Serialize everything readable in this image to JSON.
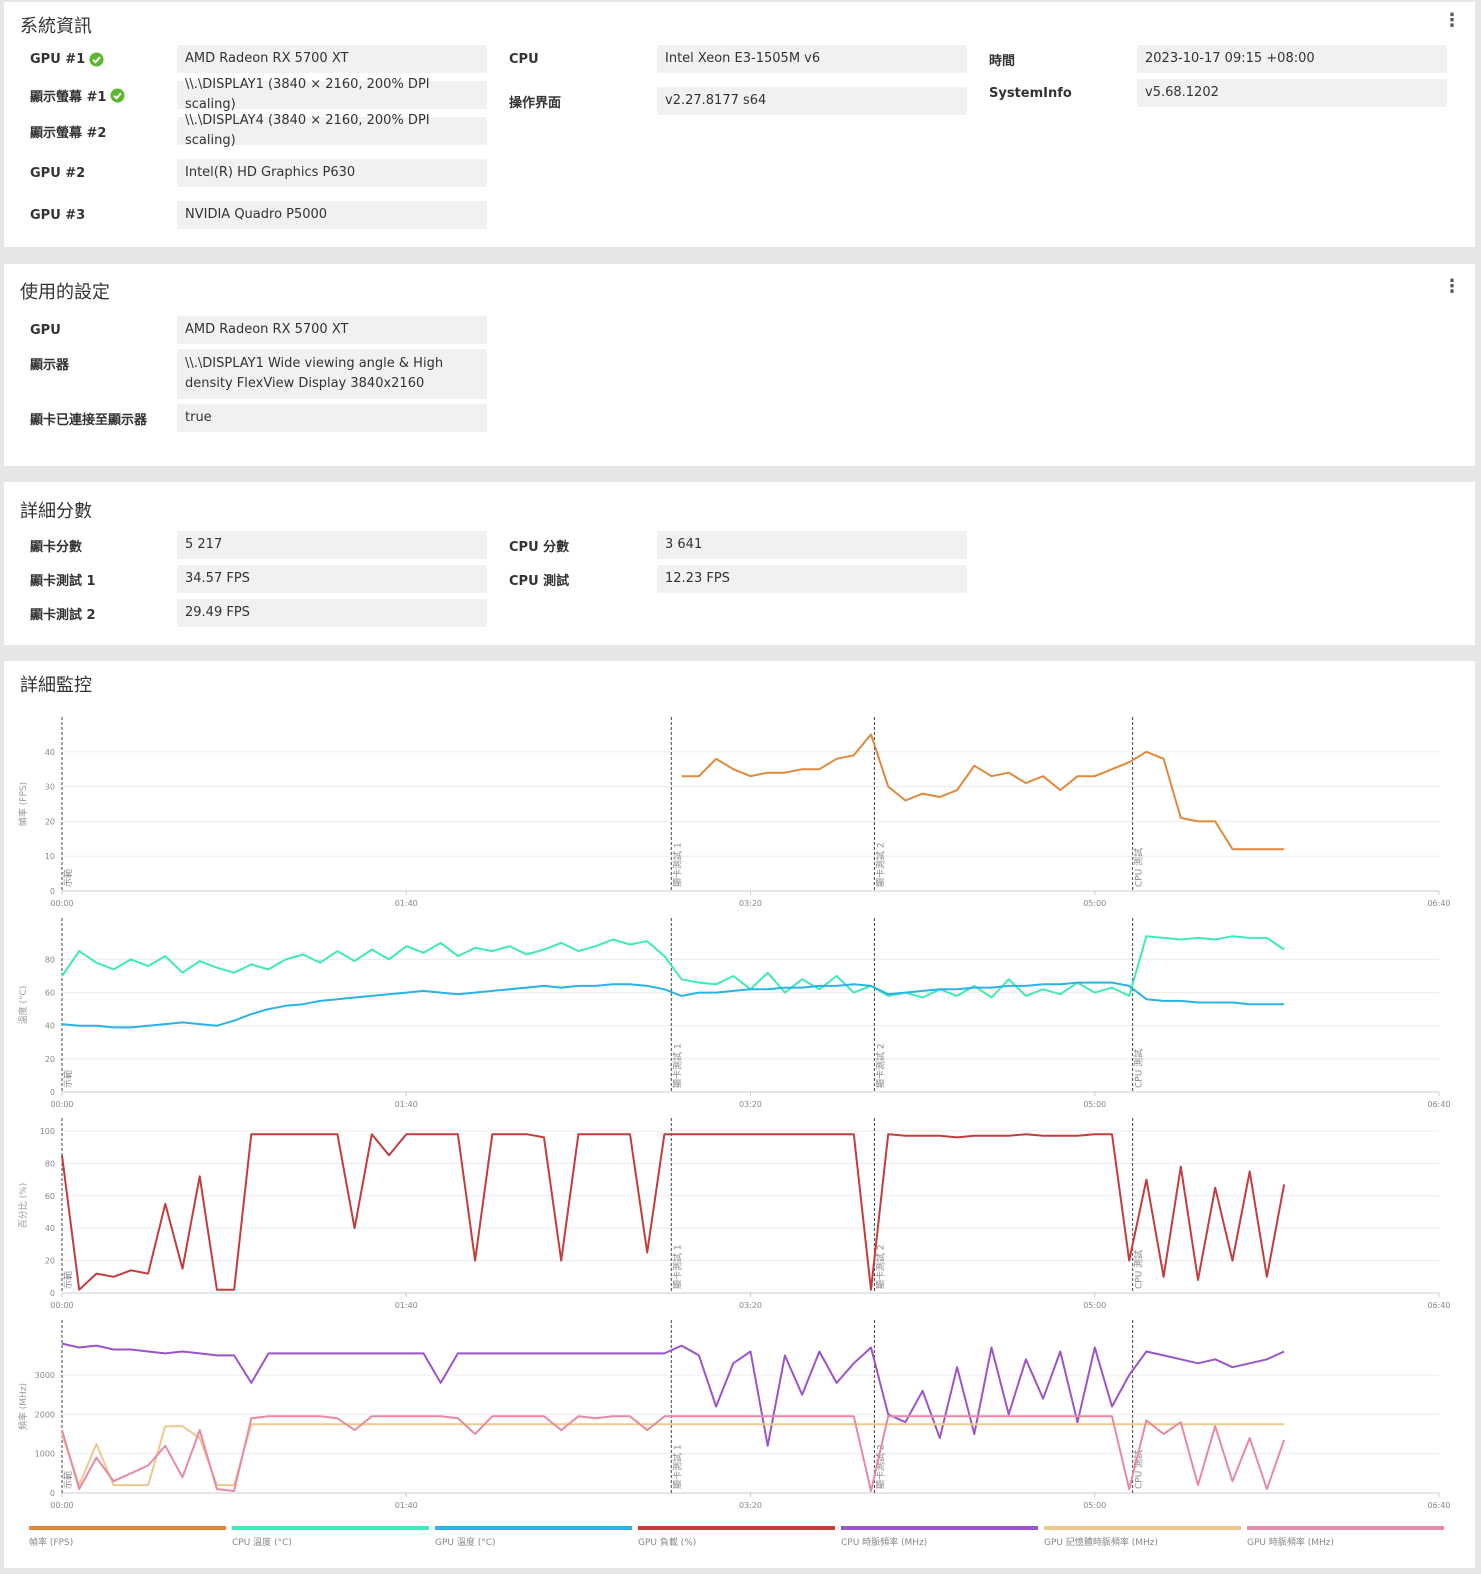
{
  "system_info": {
    "title": "系統資訊",
    "fields": [
      {
        "label": "GPU #1",
        "value": "AMD Radeon RX 5700 XT"
      },
      {
        "label": "顯示螢幕 #1",
        "value": "\\\\.\\DISPLAY1 (3840 × 2160, 200% DPI scaling)"
      },
      {
        "label": "顯示螢幕 #2",
        "value": "\\\\.\\DISPLAY4 (3840 × 2160, 200% DPI scaling)"
      },
      {
        "label": "GPU #2",
        "value": "Intel(R) HD Graphics P630"
      },
      {
        "label": "GPU #3",
        "value": "NVIDIA Quadro P5000"
      },
      {
        "label": "CPU",
        "value": "Intel Xeon E3-1505M v6"
      },
      {
        "label": "操作界面",
        "value": "v2.27.8177 s64"
      },
      {
        "label": "時間",
        "value": "2023-10-17 09:15 +08:00"
      },
      {
        "label": "SystemInfo",
        "value": "v5.68.1202"
      }
    ]
  },
  "settings": {
    "title": "使用的設定",
    "fields": [
      {
        "label": "GPU",
        "value": "AMD Radeon RX 5700 XT"
      },
      {
        "label": "顯示器",
        "value": "\\\\.\\DISPLAY1 Wide viewing angle & High density FlexView Display 3840x2160"
      },
      {
        "label": "顯卡已連接至顯示器",
        "value": "true"
      }
    ]
  },
  "scores": {
    "title": "詳細分數",
    "fields": [
      {
        "label": "顯卡分數",
        "value": "5 217"
      },
      {
        "label": "顯卡測試 1",
        "value": "34.57 FPS"
      },
      {
        "label": "顯卡測試 2",
        "value": "29.49 FPS"
      },
      {
        "label": "CPU 分數",
        "value": "3 641"
      },
      {
        "label": "CPU 測試",
        "value": "12.23 FPS"
      }
    ]
  },
  "monitoring": {
    "title": "詳細監控",
    "events": [
      {
        "time": 0,
        "label": "示範"
      },
      {
        "time": 177,
        "label": "顯卡測試 1"
      },
      {
        "time": 236,
        "label": "顯卡測試 2"
      },
      {
        "time": 311,
        "label": "CPU 測試"
      }
    ]
  },
  "chart_data": [
    {
      "type": "line",
      "y_label": "幀率 (FPS)",
      "grid": true,
      "x": [
        0,
        5,
        10,
        15,
        20,
        25,
        30,
        35,
        40,
        45,
        50,
        55,
        60,
        65,
        70,
        75,
        80,
        85,
        90,
        95,
        100,
        105,
        110,
        115,
        120,
        125,
        130,
        135,
        140,
        145,
        150,
        155,
        160,
        165,
        170,
        175,
        180,
        185,
        190,
        195,
        200,
        205,
        210,
        215,
        220,
        225,
        230,
        235,
        240,
        245,
        250,
        255,
        260,
        265,
        270,
        275,
        280,
        285,
        290,
        295,
        300,
        305,
        310,
        315,
        320,
        325,
        330,
        335,
        340,
        345,
        350,
        355
      ],
      "xlim": [
        0,
        400
      ],
      "xticks": [
        {
          "value": 0,
          "label": "00:00"
        },
        {
          "value": 100,
          "label": "01:40"
        },
        {
          "value": 200,
          "label": "03:20"
        },
        {
          "value": 300,
          "label": "05:00"
        },
        {
          "value": 400,
          "label": "06:40"
        }
      ],
      "ylim": [
        0,
        50
      ],
      "yticks": [
        0,
        10,
        20,
        30,
        40
      ],
      "series": [
        {
          "name": "幀率 (FPS)",
          "color": "#e0893a",
          "values": [
            null,
            null,
            null,
            null,
            null,
            null,
            null,
            null,
            null,
            null,
            null,
            null,
            null,
            null,
            null,
            null,
            null,
            null,
            null,
            null,
            null,
            null,
            null,
            null,
            null,
            null,
            null,
            null,
            null,
            null,
            null,
            null,
            null,
            null,
            null,
            null,
            33,
            33,
            38,
            35,
            33,
            34,
            34,
            35,
            35,
            38,
            39,
            45,
            30,
            26,
            28,
            27,
            29,
            36,
            33,
            34,
            31,
            33,
            29,
            33,
            33,
            35,
            37,
            40,
            38,
            21,
            20,
            20,
            12,
            12,
            12,
            12
          ]
        }
      ]
    },
    {
      "type": "line",
      "y_label": "溫度 (°C)",
      "grid": true,
      "x": [
        0,
        5,
        10,
        15,
        20,
        25,
        30,
        35,
        40,
        45,
        50,
        55,
        60,
        65,
        70,
        75,
        80,
        85,
        90,
        95,
        100,
        105,
        110,
        115,
        120,
        125,
        130,
        135,
        140,
        145,
        150,
        155,
        160,
        165,
        170,
        175,
        180,
        185,
        190,
        195,
        200,
        205,
        210,
        215,
        220,
        225,
        230,
        235,
        240,
        245,
        250,
        255,
        260,
        265,
        270,
        275,
        280,
        285,
        290,
        295,
        300,
        305,
        310,
        315,
        320,
        325,
        330,
        335,
        340,
        345,
        350,
        355
      ],
      "xlim": [
        0,
        400
      ],
      "xticks": [
        {
          "value": 0,
          "label": "00:00"
        },
        {
          "value": 100,
          "label": "01:40"
        },
        {
          "value": 200,
          "label": "03:20"
        },
        {
          "value": 300,
          "label": "05:00"
        },
        {
          "value": 400,
          "label": "06:40"
        }
      ],
      "ylim": [
        0,
        105
      ],
      "yticks": [
        0,
        20,
        40,
        60,
        80
      ],
      "series": [
        {
          "name": "CPU 溫度 (°C)",
          "color": "#3eeab9",
          "values": [
            70,
            85,
            78,
            74,
            80,
            76,
            82,
            72,
            79,
            75,
            72,
            77,
            74,
            80,
            83,
            78,
            85,
            79,
            86,
            80,
            88,
            84,
            90,
            82,
            87,
            85,
            88,
            83,
            86,
            90,
            85,
            88,
            92,
            89,
            91,
            82,
            68,
            66,
            65,
            70,
            62,
            72,
            60,
            68,
            62,
            70,
            60,
            64,
            58,
            60,
            57,
            62,
            58,
            64,
            57,
            68,
            58,
            62,
            59,
            66,
            60,
            63,
            58,
            94,
            93,
            92,
            93,
            92,
            94,
            93,
            93,
            86
          ]
        },
        {
          "name": "GPU 溫度 (°C)",
          "color": "#2bb3e3",
          "values": [
            41,
            40,
            40,
            39,
            39,
            40,
            41,
            42,
            41,
            40,
            43,
            47,
            50,
            52,
            53,
            55,
            56,
            57,
            58,
            59,
            60,
            61,
            60,
            59,
            60,
            61,
            62,
            63,
            64,
            63,
            64,
            64,
            65,
            65,
            64,
            62,
            58,
            60,
            60,
            61,
            62,
            62,
            63,
            63,
            64,
            64,
            65,
            64,
            59,
            60,
            61,
            62,
            62,
            63,
            63,
            64,
            64,
            65,
            65,
            66,
            66,
            66,
            64,
            56,
            55,
            55,
            54,
            54,
            54,
            53,
            53,
            53
          ]
        }
      ]
    },
    {
      "type": "line",
      "y_label": "百分比 (%)",
      "grid": true,
      "x": [
        0,
        5,
        10,
        15,
        20,
        25,
        30,
        35,
        40,
        45,
        50,
        55,
        60,
        65,
        70,
        75,
        80,
        85,
        90,
        95,
        100,
        105,
        110,
        115,
        120,
        125,
        130,
        135,
        140,
        145,
        150,
        155,
        160,
        165,
        170,
        175,
        180,
        185,
        190,
        195,
        200,
        205,
        210,
        215,
        220,
        225,
        230,
        235,
        240,
        245,
        250,
        255,
        260,
        265,
        270,
        275,
        280,
        285,
        290,
        295,
        300,
        305,
        310,
        315,
        320,
        325,
        330,
        335,
        340,
        345,
        350,
        355
      ],
      "xlim": [
        0,
        400
      ],
      "xticks": [
        {
          "value": 0,
          "label": "00:00"
        },
        {
          "value": 100,
          "label": "01:40"
        },
        {
          "value": 200,
          "label": "03:20"
        },
        {
          "value": 300,
          "label": "05:00"
        },
        {
          "value": 400,
          "label": "06:40"
        }
      ],
      "ylim": [
        0,
        108
      ],
      "yticks": [
        0,
        20,
        40,
        60,
        80,
        100
      ],
      "series": [
        {
          "name": "GPU 負載 (%)",
          "color": "#c43c3c",
          "values": [
            85,
            2,
            12,
            10,
            14,
            12,
            55,
            15,
            72,
            2,
            2,
            98,
            98,
            98,
            98,
            98,
            98,
            40,
            98,
            85,
            98,
            98,
            98,
            98,
            20,
            98,
            98,
            98,
            96,
            20,
            98,
            98,
            98,
            98,
            25,
            98,
            98,
            98,
            98,
            98,
            98,
            98,
            98,
            98,
            98,
            98,
            98,
            2,
            98,
            97,
            97,
            97,
            96,
            97,
            97,
            97,
            98,
            97,
            97,
            97,
            98,
            98,
            20,
            70,
            10,
            78,
            8,
            65,
            20,
            75,
            10,
            67
          ]
        }
      ]
    },
    {
      "type": "line",
      "y_label": "頻率 (MHz)",
      "grid": true,
      "x": [
        0,
        5,
        10,
        15,
        20,
        25,
        30,
        35,
        40,
        45,
        50,
        55,
        60,
        65,
        70,
        75,
        80,
        85,
        90,
        95,
        100,
        105,
        110,
        115,
        120,
        125,
        130,
        135,
        140,
        145,
        150,
        155,
        160,
        165,
        170,
        175,
        180,
        185,
        190,
        195,
        200,
        205,
        210,
        215,
        220,
        225,
        230,
        235,
        240,
        245,
        250,
        255,
        260,
        265,
        270,
        275,
        280,
        285,
        290,
        295,
        300,
        305,
        310,
        315,
        320,
        325,
        330,
        335,
        340,
        345,
        350,
        355
      ],
      "xlim": [
        0,
        400
      ],
      "xticks": [
        {
          "value": 0,
          "label": "00:00"
        },
        {
          "value": 100,
          "label": "01:40"
        },
        {
          "value": 200,
          "label": "03:20"
        },
        {
          "value": 300,
          "label": "05:00"
        },
        {
          "value": 400,
          "label": "06:40"
        }
      ],
      "ylim": [
        0,
        4400
      ],
      "yticks": [
        0,
        1000,
        2000,
        3000
      ],
      "series": [
        {
          "name": "CPU 時脈頻率 (MHz)",
          "color": "#9b55c8",
          "values": [
            3800,
            3700,
            3750,
            3650,
            3650,
            3600,
            3550,
            3600,
            3550,
            3500,
            3500,
            2800,
            3550,
            3550,
            3550,
            3550,
            3550,
            3550,
            3550,
            3550,
            3550,
            3550,
            2800,
            3550,
            3550,
            3550,
            3550,
            3550,
            3550,
            3550,
            3550,
            3550,
            3550,
            3550,
            3550,
            3550,
            3750,
            3500,
            2200,
            3300,
            3600,
            1200,
            3500,
            2500,
            3600,
            2800,
            3300,
            3700,
            2000,
            1800,
            2600,
            1400,
            3200,
            1500,
            3700,
            2000,
            3400,
            2400,
            3600,
            1800,
            3700,
            2200,
            3000,
            3600,
            3500,
            3400,
            3300,
            3400,
            3200,
            3300,
            3400,
            3600
          ]
        },
        {
          "name": "GPU 記憶體時脈頻率 (MHz)",
          "color": "#ecc98e",
          "values": [
            1500,
            200,
            1250,
            200,
            200,
            200,
            1700,
            1700,
            1400,
            200,
            200,
            1750,
            1750,
            1750,
            1750,
            1750,
            1750,
            1750,
            1750,
            1750,
            1750,
            1750,
            1750,
            1750,
            1750,
            1750,
            1750,
            1750,
            1750,
            1750,
            1750,
            1750,
            1750,
            1750,
            1750,
            1750,
            1750,
            1750,
            1750,
            1750,
            1750,
            1750,
            1750,
            1750,
            1750,
            1750,
            1750,
            1750,
            1750,
            1750,
            1750,
            1750,
            1750,
            1750,
            1750,
            1750,
            1750,
            1750,
            1750,
            1750,
            1750,
            1750,
            1750,
            1750,
            1750,
            1750,
            1750,
            1750,
            1750,
            1750,
            1750,
            1750
          ]
        },
        {
          "name": "GPU 時脈頻率 (MHz)",
          "color": "#e68aa6",
          "values": [
            1600,
            100,
            900,
            300,
            500,
            700,
            1200,
            400,
            1600,
            100,
            50,
            1900,
            1950,
            1950,
            1950,
            1950,
            1900,
            1600,
            1950,
            1950,
            1950,
            1950,
            1950,
            1900,
            1500,
            1950,
            1950,
            1950,
            1950,
            1600,
            1950,
            1900,
            1950,
            1950,
            1600,
            1950,
            1950,
            1950,
            1950,
            1950,
            1950,
            1950,
            1950,
            1950,
            1950,
            1950,
            1950,
            50,
            1950,
            1950,
            1950,
            1950,
            1950,
            1950,
            1950,
            1950,
            1950,
            1950,
            1950,
            1950,
            1950,
            1950,
            100,
            1850,
            1500,
            1800,
            200,
            1700,
            300,
            1400,
            100,
            1350
          ]
        }
      ]
    }
  ]
}
